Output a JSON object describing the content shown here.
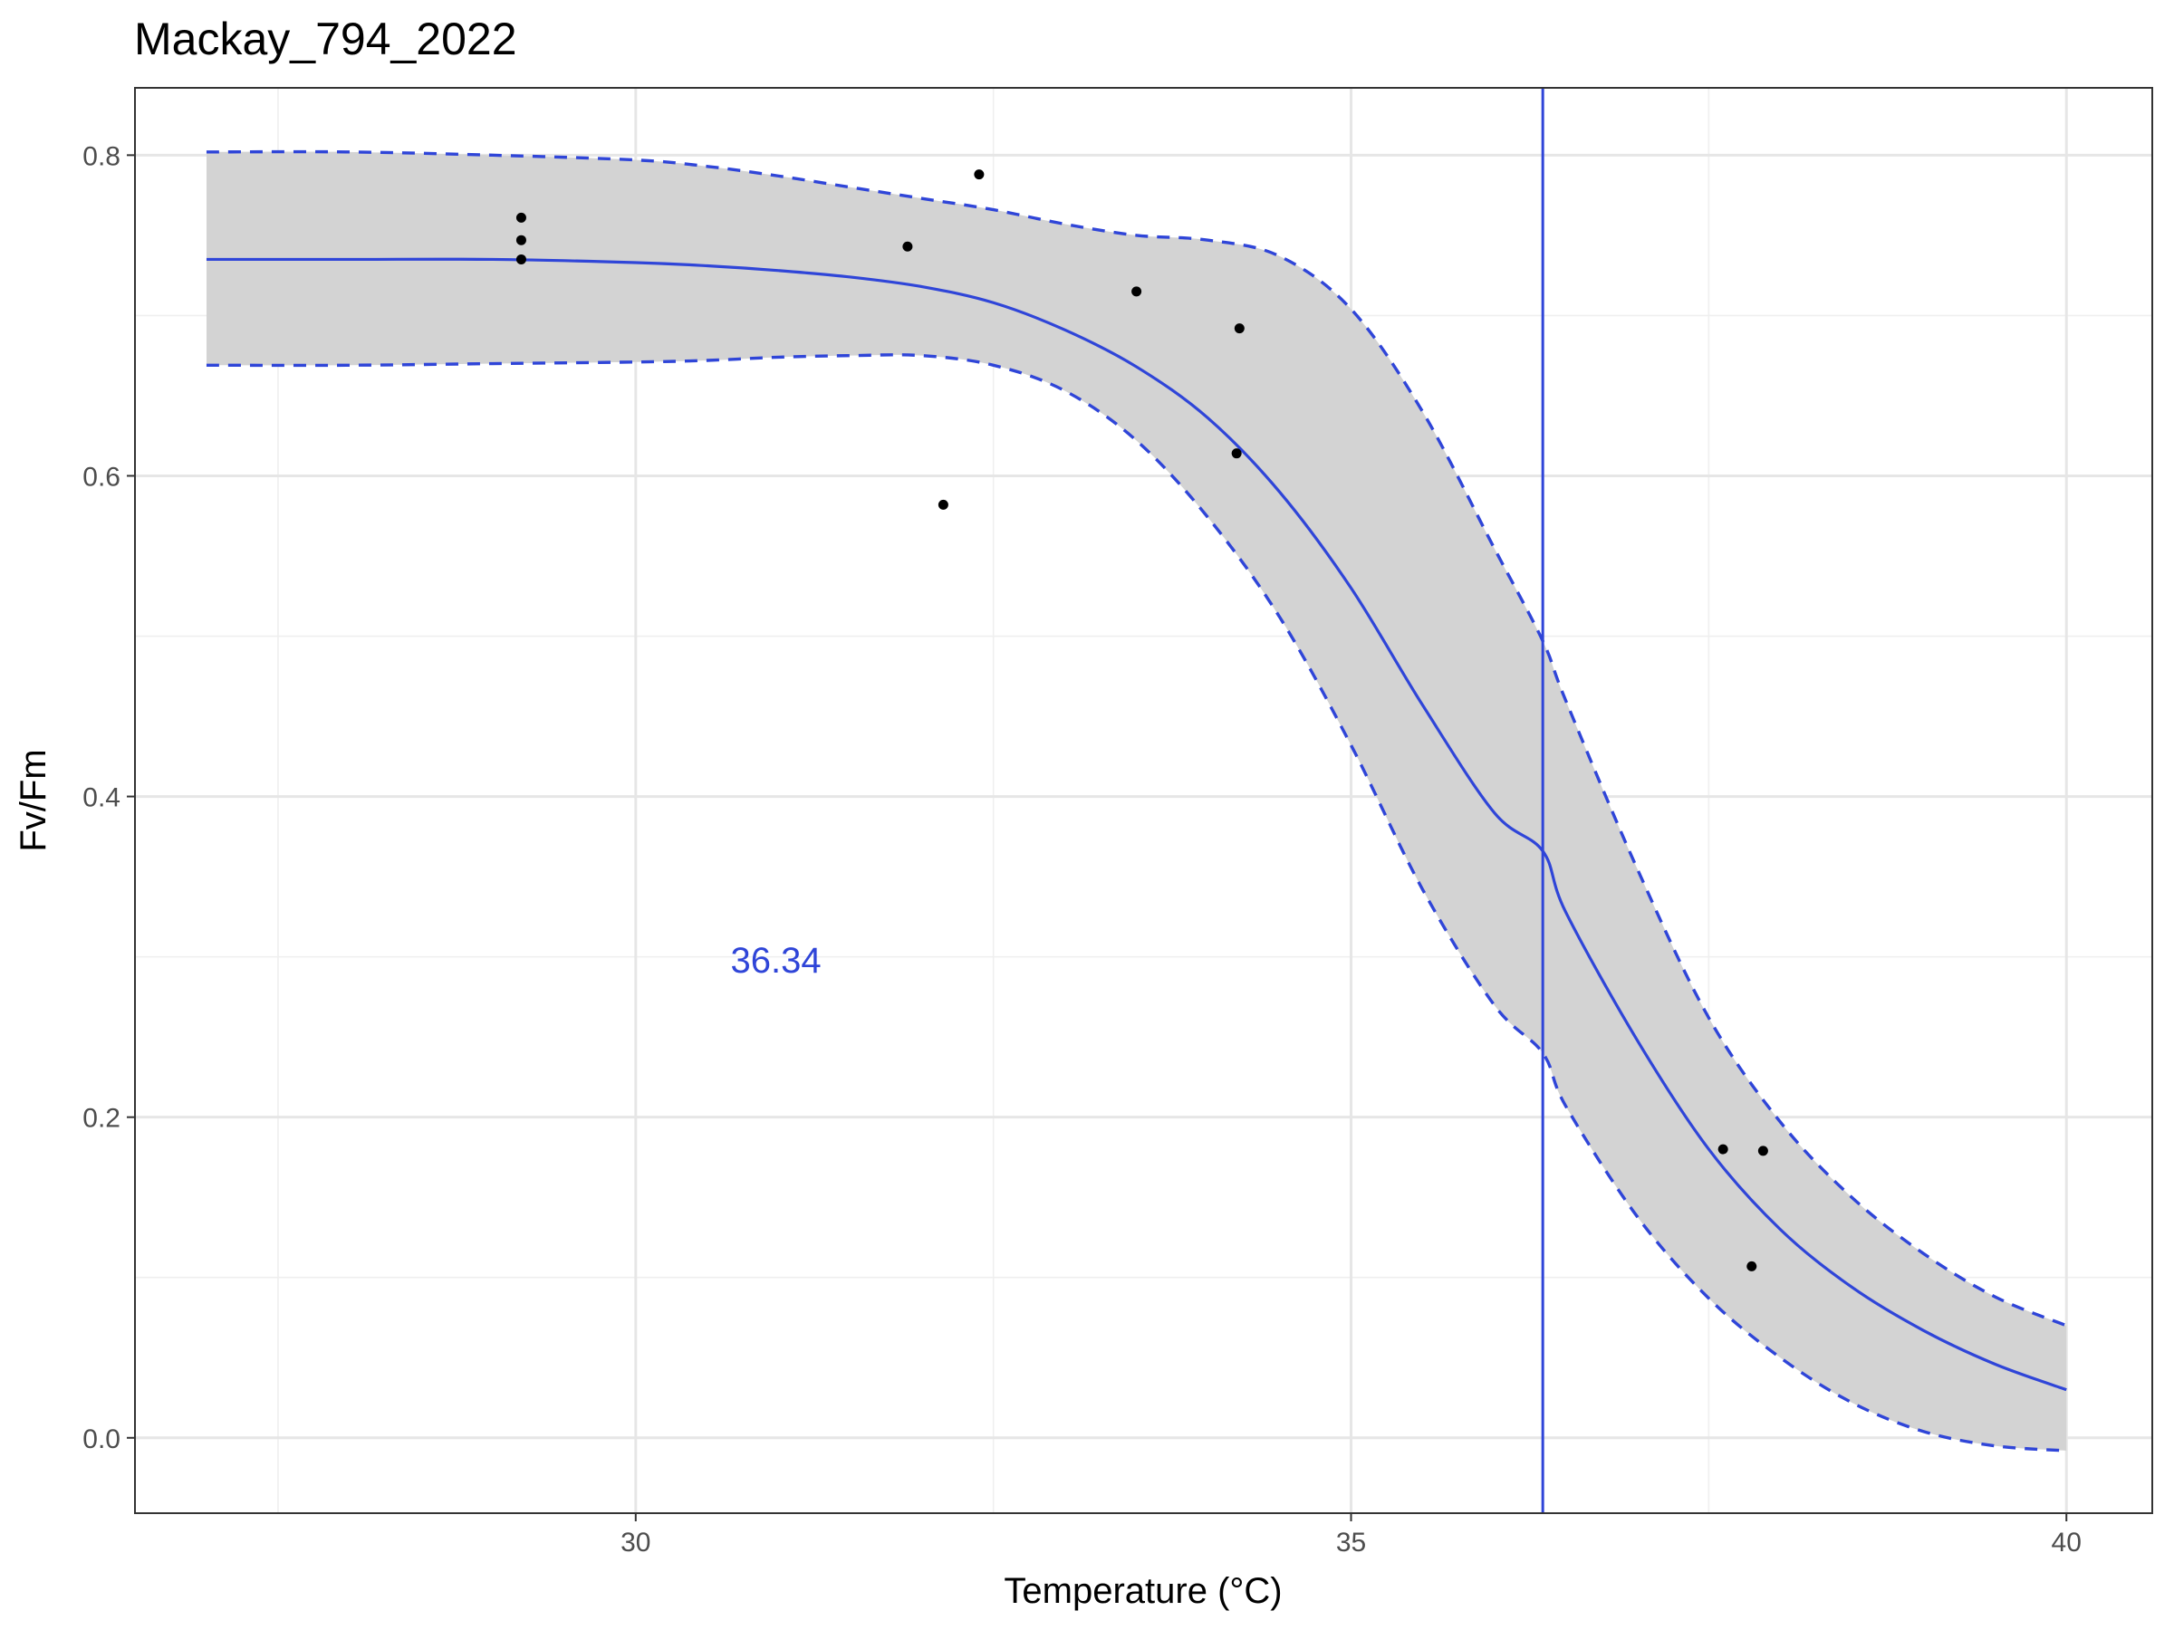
{
  "chart_data": {
    "type": "line",
    "title": "Mackay_794_2022",
    "xlabel": "Temperature (°C)",
    "ylabel": "Fv/Fm",
    "xlim": [
      26.5,
      40.6
    ],
    "ylim": [
      -0.047,
      0.842
    ],
    "x_ticks": [
      30,
      35,
      40
    ],
    "x_tick_labels": [
      "30",
      "35",
      "40"
    ],
    "x_minor_ticks": [
      27.5,
      32.5,
      37.5
    ],
    "y_ticks": [
      0.0,
      0.2,
      0.4,
      0.6,
      0.8
    ],
    "y_tick_labels": [
      "0.0",
      "0.2",
      "0.4",
      "0.6",
      "0.8"
    ],
    "y_minor_ticks": [
      0.1,
      0.3,
      0.5,
      0.7
    ],
    "grid": true,
    "colors": {
      "fit": "#2f45d8",
      "bounds": "#2f45d8",
      "ribbon": "#d3d3d3",
      "points": "#000000",
      "annotation": "#2f45d8"
    },
    "points": {
      "name": "observations",
      "x": [
        29.2,
        29.2,
        29.2,
        31.9,
        32.15,
        32.4,
        33.5,
        34.2,
        34.22,
        37.6,
        37.8,
        37.88
      ],
      "y": [
        0.761,
        0.747,
        0.735,
        0.743,
        0.582,
        0.788,
        0.715,
        0.614,
        0.692,
        0.18,
        0.107,
        0.179
      ]
    },
    "fit": {
      "name": "fitted curve",
      "x": [
        27.0,
        28.0,
        29.0,
        30.0,
        30.5,
        31.0,
        31.5,
        32.0,
        32.5,
        33.0,
        33.5,
        34.0,
        34.5,
        35.0,
        35.5,
        36.0,
        36.34,
        36.5,
        37.0,
        37.5,
        38.0,
        38.5,
        39.0,
        39.5,
        40.0
      ],
      "y": [
        0.735,
        0.735,
        0.735,
        0.733,
        0.731,
        0.728,
        0.724,
        0.718,
        0.708,
        0.691,
        0.668,
        0.636,
        0.59,
        0.53,
        0.457,
        0.39,
        0.366,
        0.328,
        0.248,
        0.18,
        0.13,
        0.094,
        0.067,
        0.046,
        0.03
      ]
    },
    "upper_bound": {
      "name": "upper confidence bound",
      "x": [
        27.0,
        28.0,
        29.0,
        30.0,
        30.5,
        31.0,
        31.5,
        32.0,
        32.5,
        33.0,
        33.5,
        34.0,
        34.5,
        35.0,
        35.5,
        36.0,
        36.34,
        36.5,
        37.0,
        37.5,
        38.0,
        38.5,
        39.0,
        39.5,
        40.0
      ],
      "y": [
        0.802,
        0.802,
        0.8,
        0.797,
        0.793,
        0.787,
        0.78,
        0.773,
        0.766,
        0.757,
        0.75,
        0.747,
        0.737,
        0.704,
        0.64,
        0.555,
        0.497,
        0.46,
        0.355,
        0.262,
        0.197,
        0.15,
        0.115,
        0.088,
        0.07
      ]
    },
    "lower_bound": {
      "name": "lower confidence bound",
      "x": [
        27.0,
        28.0,
        29.0,
        30.0,
        30.5,
        31.0,
        31.5,
        32.0,
        32.5,
        33.0,
        33.5,
        34.0,
        34.5,
        35.0,
        35.5,
        36.0,
        36.34,
        36.5,
        37.0,
        37.5,
        38.0,
        38.5,
        39.0,
        39.5,
        40.0
      ],
      "y": [
        0.669,
        0.669,
        0.67,
        0.671,
        0.672,
        0.674,
        0.675,
        0.675,
        0.669,
        0.653,
        0.622,
        0.574,
        0.512,
        0.432,
        0.342,
        0.27,
        0.24,
        0.207,
        0.138,
        0.087,
        0.05,
        0.022,
        0.004,
        -0.005,
        -0.008
      ]
    },
    "vline": {
      "x": 36.34,
      "label": "threshold temperature"
    },
    "annotation": {
      "text": "36.34",
      "x": 30.98,
      "y": 0.298
    }
  }
}
